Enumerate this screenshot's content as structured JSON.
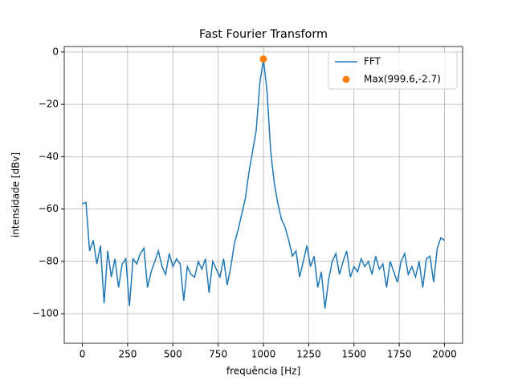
{
  "chart_data": {
    "type": "line",
    "title": "Fast Fourier Transform",
    "xlabel": "frequência [Hz]",
    "ylabel": "intensidade [dBv]",
    "x": [
      0,
      20,
      40,
      60,
      80,
      100,
      120,
      140,
      160,
      180,
      200,
      220,
      240,
      260,
      280,
      300,
      320,
      340,
      360,
      380,
      400,
      420,
      440,
      460,
      480,
      500,
      520,
      540,
      560,
      580,
      600,
      620,
      640,
      660,
      680,
      700,
      720,
      740,
      760,
      780,
      800,
      820,
      840,
      860,
      880,
      900,
      920,
      940,
      960,
      980,
      1000,
      1020,
      1040,
      1060,
      1080,
      1100,
      1120,
      1140,
      1160,
      1180,
      1200,
      1220,
      1240,
      1260,
      1280,
      1300,
      1320,
      1340,
      1360,
      1380,
      1400,
      1420,
      1440,
      1460,
      1480,
      1500,
      1520,
      1540,
      1560,
      1580,
      1600,
      1620,
      1640,
      1660,
      1680,
      1700,
      1720,
      1740,
      1760,
      1780,
      1800,
      1820,
      1840,
      1860,
      1880,
      1900,
      1920,
      1940,
      1960,
      1980,
      2000
    ],
    "series": [
      {
        "name": "FFT",
        "type": "line",
        "color": "#1f77b4",
        "values": [
          -58,
          -57.5,
          -76,
          -72,
          -81,
          -74,
          -96,
          -76,
          -86,
          -79,
          -90,
          -81,
          -79,
          -97,
          -79,
          -81,
          -77,
          -75,
          -90,
          -84,
          -80,
          -76,
          -82,
          -85,
          -77,
          -82,
          -79,
          -81,
          -95,
          -82,
          -85,
          -86,
          -80,
          -83,
          -79,
          -92,
          -80,
          -83,
          -86,
          -79,
          -89,
          -82,
          -73,
          -68,
          -62,
          -56,
          -46,
          -38,
          -30,
          -12,
          -2.7,
          -15,
          -38,
          -50,
          -58,
          -64,
          -67,
          -72,
          -78,
          -76,
          -86,
          -80,
          -74,
          -82,
          -78,
          -90,
          -84,
          -98,
          -87,
          -80,
          -77,
          -85,
          -80,
          -76,
          -86,
          -82,
          -84,
          -79,
          -82,
          -80,
          -85,
          -78,
          -83,
          -81,
          -90,
          -80,
          -84,
          -88,
          -80,
          -77,
          -85,
          -82,
          -86,
          -80,
          -90,
          -79,
          -78,
          -88,
          -75,
          -71,
          -72
        ]
      },
      {
        "name": "Max(999.6,-2.7)",
        "type": "scatter",
        "color": "#ff7f0e",
        "x": [
          999.6
        ],
        "values": [
          -2.7
        ]
      }
    ],
    "xlim": [
      -100,
      2100
    ],
    "ylim": [
      -111.3,
      2.1
    ],
    "xticks": [
      0,
      250,
      500,
      750,
      1000,
      1250,
      1500,
      1750,
      2000
    ],
    "yticks": [
      0,
      {
        "value": -20,
        "label": "−20"
      },
      {
        "value": -40,
        "label": "−40"
      },
      {
        "value": -60,
        "label": "−60"
      },
      {
        "value": -80,
        "label": "−80"
      },
      {
        "value": -100,
        "label": "−100"
      }
    ],
    "grid": true,
    "legend": "upper right"
  }
}
